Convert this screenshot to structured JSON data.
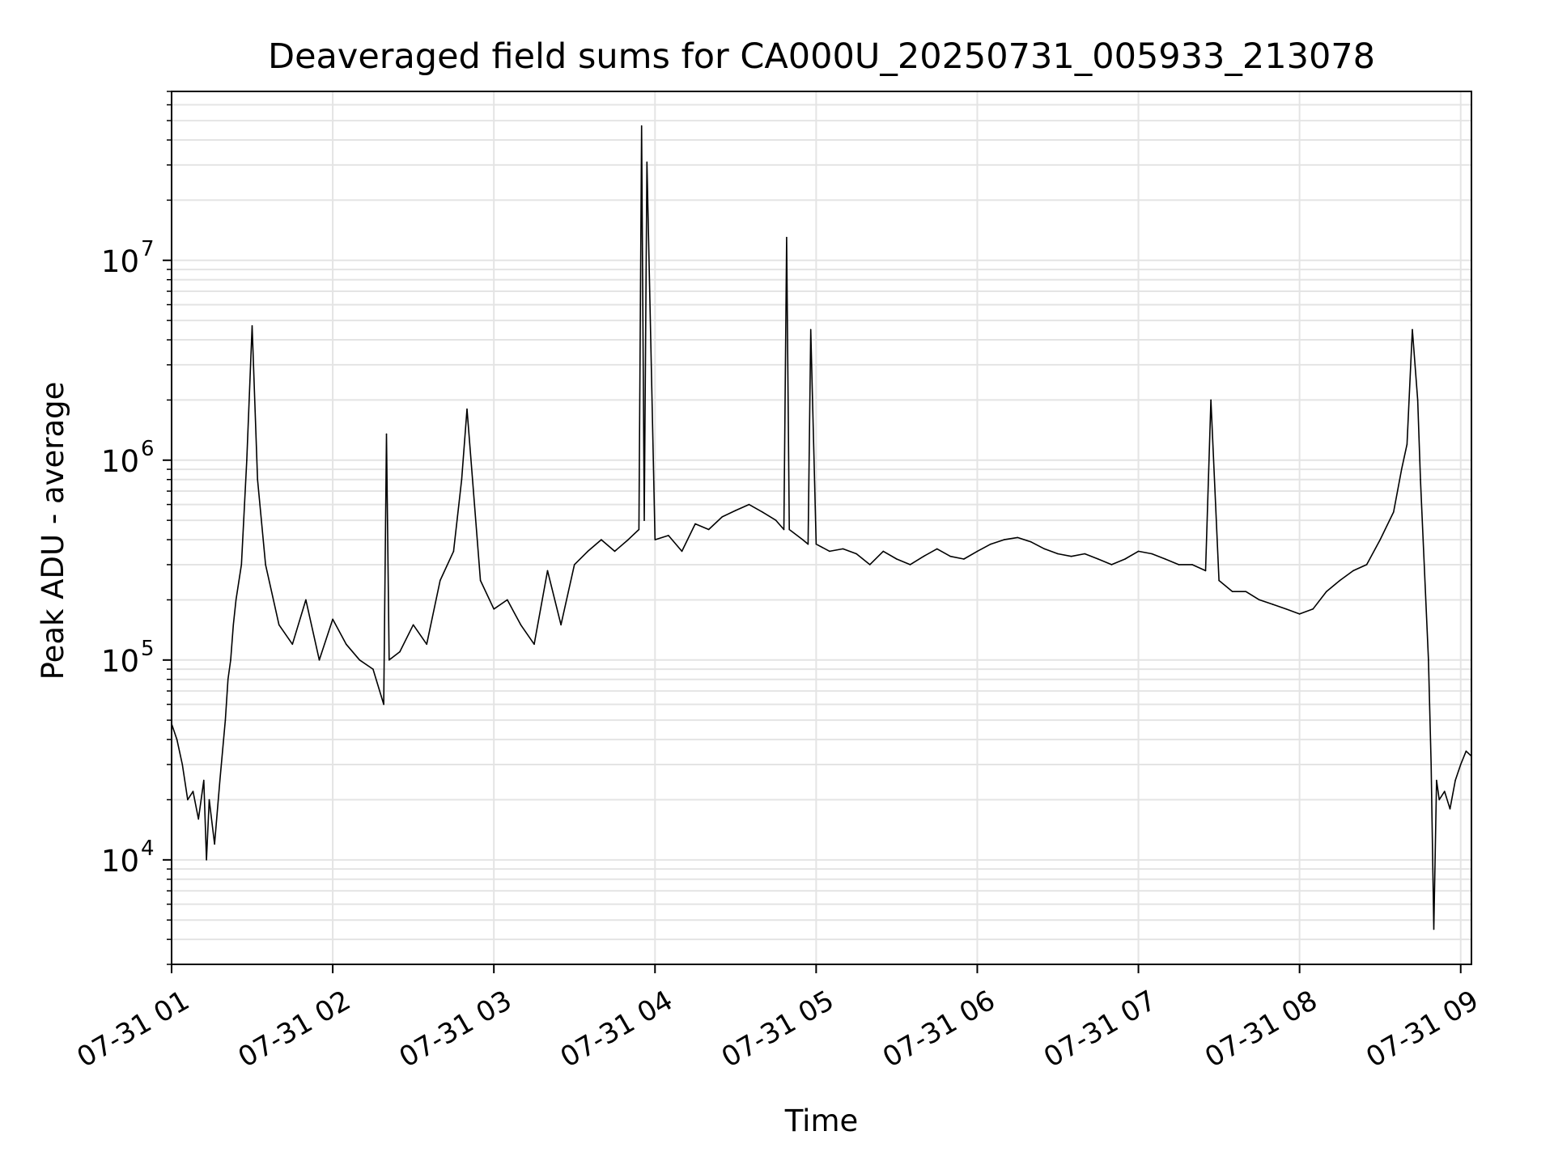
{
  "chart_data": {
    "type": "line",
    "title": "Deaveraged field sums for CA000U_20250731_005933_213078",
    "xlabel": "Time",
    "ylabel": "Peak ADU - average",
    "y_scale": "log",
    "ylim": [
      3000,
      70000000
    ],
    "xlim": [
      "2025-07-31 01:00",
      "2025-07-31 09:04"
    ],
    "grid": true,
    "line_color": "#000000",
    "x_ticks": [
      {
        "t": "2025-07-31 01:00",
        "label": "07-31 01"
      },
      {
        "t": "2025-07-31 02:00",
        "label": "07-31 02"
      },
      {
        "t": "2025-07-31 03:00",
        "label": "07-31 03"
      },
      {
        "t": "2025-07-31 04:00",
        "label": "07-31 04"
      },
      {
        "t": "2025-07-31 05:00",
        "label": "07-31 05"
      },
      {
        "t": "2025-07-31 06:00",
        "label": "07-31 06"
      },
      {
        "t": "2025-07-31 07:00",
        "label": "07-31 07"
      },
      {
        "t": "2025-07-31 08:00",
        "label": "07-31 08"
      },
      {
        "t": "2025-07-31 09:00",
        "label": "07-31 09"
      }
    ],
    "y_ticks": [
      {
        "value": 10000,
        "base": "10",
        "exp": "4"
      },
      {
        "value": 100000,
        "base": "10",
        "exp": "5"
      },
      {
        "value": 1000000,
        "base": "10",
        "exp": "6"
      },
      {
        "value": 10000000,
        "base": "10",
        "exp": "7"
      }
    ],
    "series": [
      {
        "x": [
          "2025-07-31 01:00",
          "2025-07-31 01:02",
          "2025-07-31 01:04",
          "2025-07-31 01:06",
          "2025-07-31 01:08",
          "2025-07-31 01:10",
          "2025-07-31 01:12",
          "2025-07-31 01:13",
          "2025-07-31 01:14",
          "2025-07-31 01:16",
          "2025-07-31 01:18",
          "2025-07-31 01:20",
          "2025-07-31 01:21",
          "2025-07-31 01:22",
          "2025-07-31 01:23",
          "2025-07-31 01:24",
          "2025-07-31 01:26",
          "2025-07-31 01:28",
          "2025-07-31 01:30",
          "2025-07-31 01:32",
          "2025-07-31 01:35",
          "2025-07-31 01:40",
          "2025-07-31 01:45",
          "2025-07-31 01:50",
          "2025-07-31 01:55",
          "2025-07-31 02:00",
          "2025-07-31 02:05",
          "2025-07-31 02:10",
          "2025-07-31 02:15",
          "2025-07-31 02:19",
          "2025-07-31 02:20",
          "2025-07-31 02:21",
          "2025-07-31 02:25",
          "2025-07-31 02:30",
          "2025-07-31 02:35",
          "2025-07-31 02:40",
          "2025-07-31 02:45",
          "2025-07-31 02:48",
          "2025-07-31 02:50",
          "2025-07-31 02:55",
          "2025-07-31 03:00",
          "2025-07-31 03:05",
          "2025-07-31 03:10",
          "2025-07-31 03:15",
          "2025-07-31 03:20",
          "2025-07-31 03:25",
          "2025-07-31 03:30",
          "2025-07-31 03:35",
          "2025-07-31 03:40",
          "2025-07-31 03:45",
          "2025-07-31 03:50",
          "2025-07-31 03:54",
          "2025-07-31 03:55",
          "2025-07-31 03:56",
          "2025-07-31 03:57",
          "2025-07-31 04:00",
          "2025-07-31 04:05",
          "2025-07-31 04:10",
          "2025-07-31 04:15",
          "2025-07-31 04:20",
          "2025-07-31 04:25",
          "2025-07-31 04:30",
          "2025-07-31 04:35",
          "2025-07-31 04:40",
          "2025-07-31 04:45",
          "2025-07-31 04:48",
          "2025-07-31 04:49",
          "2025-07-31 04:50",
          "2025-07-31 04:55",
          "2025-07-31 04:57",
          "2025-07-31 04:58",
          "2025-07-31 05:00",
          "2025-07-31 05:05",
          "2025-07-31 05:10",
          "2025-07-31 05:15",
          "2025-07-31 05:20",
          "2025-07-31 05:25",
          "2025-07-31 05:30",
          "2025-07-31 05:35",
          "2025-07-31 05:40",
          "2025-07-31 05:45",
          "2025-07-31 05:50",
          "2025-07-31 05:55",
          "2025-07-31 06:00",
          "2025-07-31 06:05",
          "2025-07-31 06:10",
          "2025-07-31 06:15",
          "2025-07-31 06:20",
          "2025-07-31 06:25",
          "2025-07-31 06:30",
          "2025-07-31 06:35",
          "2025-07-31 06:40",
          "2025-07-31 06:45",
          "2025-07-31 06:50",
          "2025-07-31 06:55",
          "2025-07-31 07:00",
          "2025-07-31 07:05",
          "2025-07-31 07:10",
          "2025-07-31 07:15",
          "2025-07-31 07:20",
          "2025-07-31 07:25",
          "2025-07-31 07:27",
          "2025-07-31 07:30",
          "2025-07-31 07:35",
          "2025-07-31 07:40",
          "2025-07-31 07:45",
          "2025-07-31 07:50",
          "2025-07-31 07:55",
          "2025-07-31 08:00",
          "2025-07-31 08:05",
          "2025-07-31 08:10",
          "2025-07-31 08:15",
          "2025-07-31 08:20",
          "2025-07-31 08:25",
          "2025-07-31 08:30",
          "2025-07-31 08:35",
          "2025-07-31 08:38",
          "2025-07-31 08:40",
          "2025-07-31 08:42",
          "2025-07-31 08:44",
          "2025-07-31 08:45",
          "2025-07-31 08:46",
          "2025-07-31 08:48",
          "2025-07-31 08:49",
          "2025-07-31 08:50",
          "2025-07-31 08:51",
          "2025-07-31 08:52",
          "2025-07-31 08:54",
          "2025-07-31 08:56",
          "2025-07-31 08:58",
          "2025-07-31 09:00",
          "2025-07-31 09:02",
          "2025-07-31 09:04"
        ],
        "y": [
          48000,
          40000,
          30000,
          20000,
          22000,
          16000,
          25000,
          10000,
          20000,
          12000,
          25000,
          50000,
          80000,
          100000,
          150000,
          200000,
          300000,
          1000000,
          4700000,
          800000,
          300000,
          150000,
          120000,
          200000,
          100000,
          160000,
          120000,
          100000,
          90000,
          60000,
          1350000,
          100000,
          110000,
          150000,
          120000,
          250000,
          350000,
          800000,
          1800000,
          250000,
          180000,
          200000,
          150000,
          120000,
          280000,
          150000,
          300000,
          350000,
          400000,
          350000,
          400000,
          450000,
          47000000,
          500000,
          31000000,
          400000,
          420000,
          350000,
          480000,
          450000,
          520000,
          560000,
          600000,
          550000,
          500000,
          450000,
          13000000,
          450000,
          400000,
          380000,
          4500000,
          380000,
          350000,
          360000,
          340000,
          300000,
          350000,
          320000,
          300000,
          330000,
          360000,
          330000,
          320000,
          350000,
          380000,
          400000,
          410000,
          390000,
          360000,
          340000,
          330000,
          340000,
          320000,
          300000,
          320000,
          350000,
          340000,
          320000,
          300000,
          300000,
          280000,
          2000000,
          250000,
          220000,
          220000,
          200000,
          190000,
          180000,
          170000,
          180000,
          220000,
          250000,
          280000,
          300000,
          400000,
          550000,
          900000,
          1200000,
          4500000,
          2000000,
          800000,
          400000,
          100000,
          30000,
          4500,
          25000,
          20000,
          22000,
          18000,
          25000,
          30000,
          35000,
          33000
        ]
      }
    ]
  }
}
